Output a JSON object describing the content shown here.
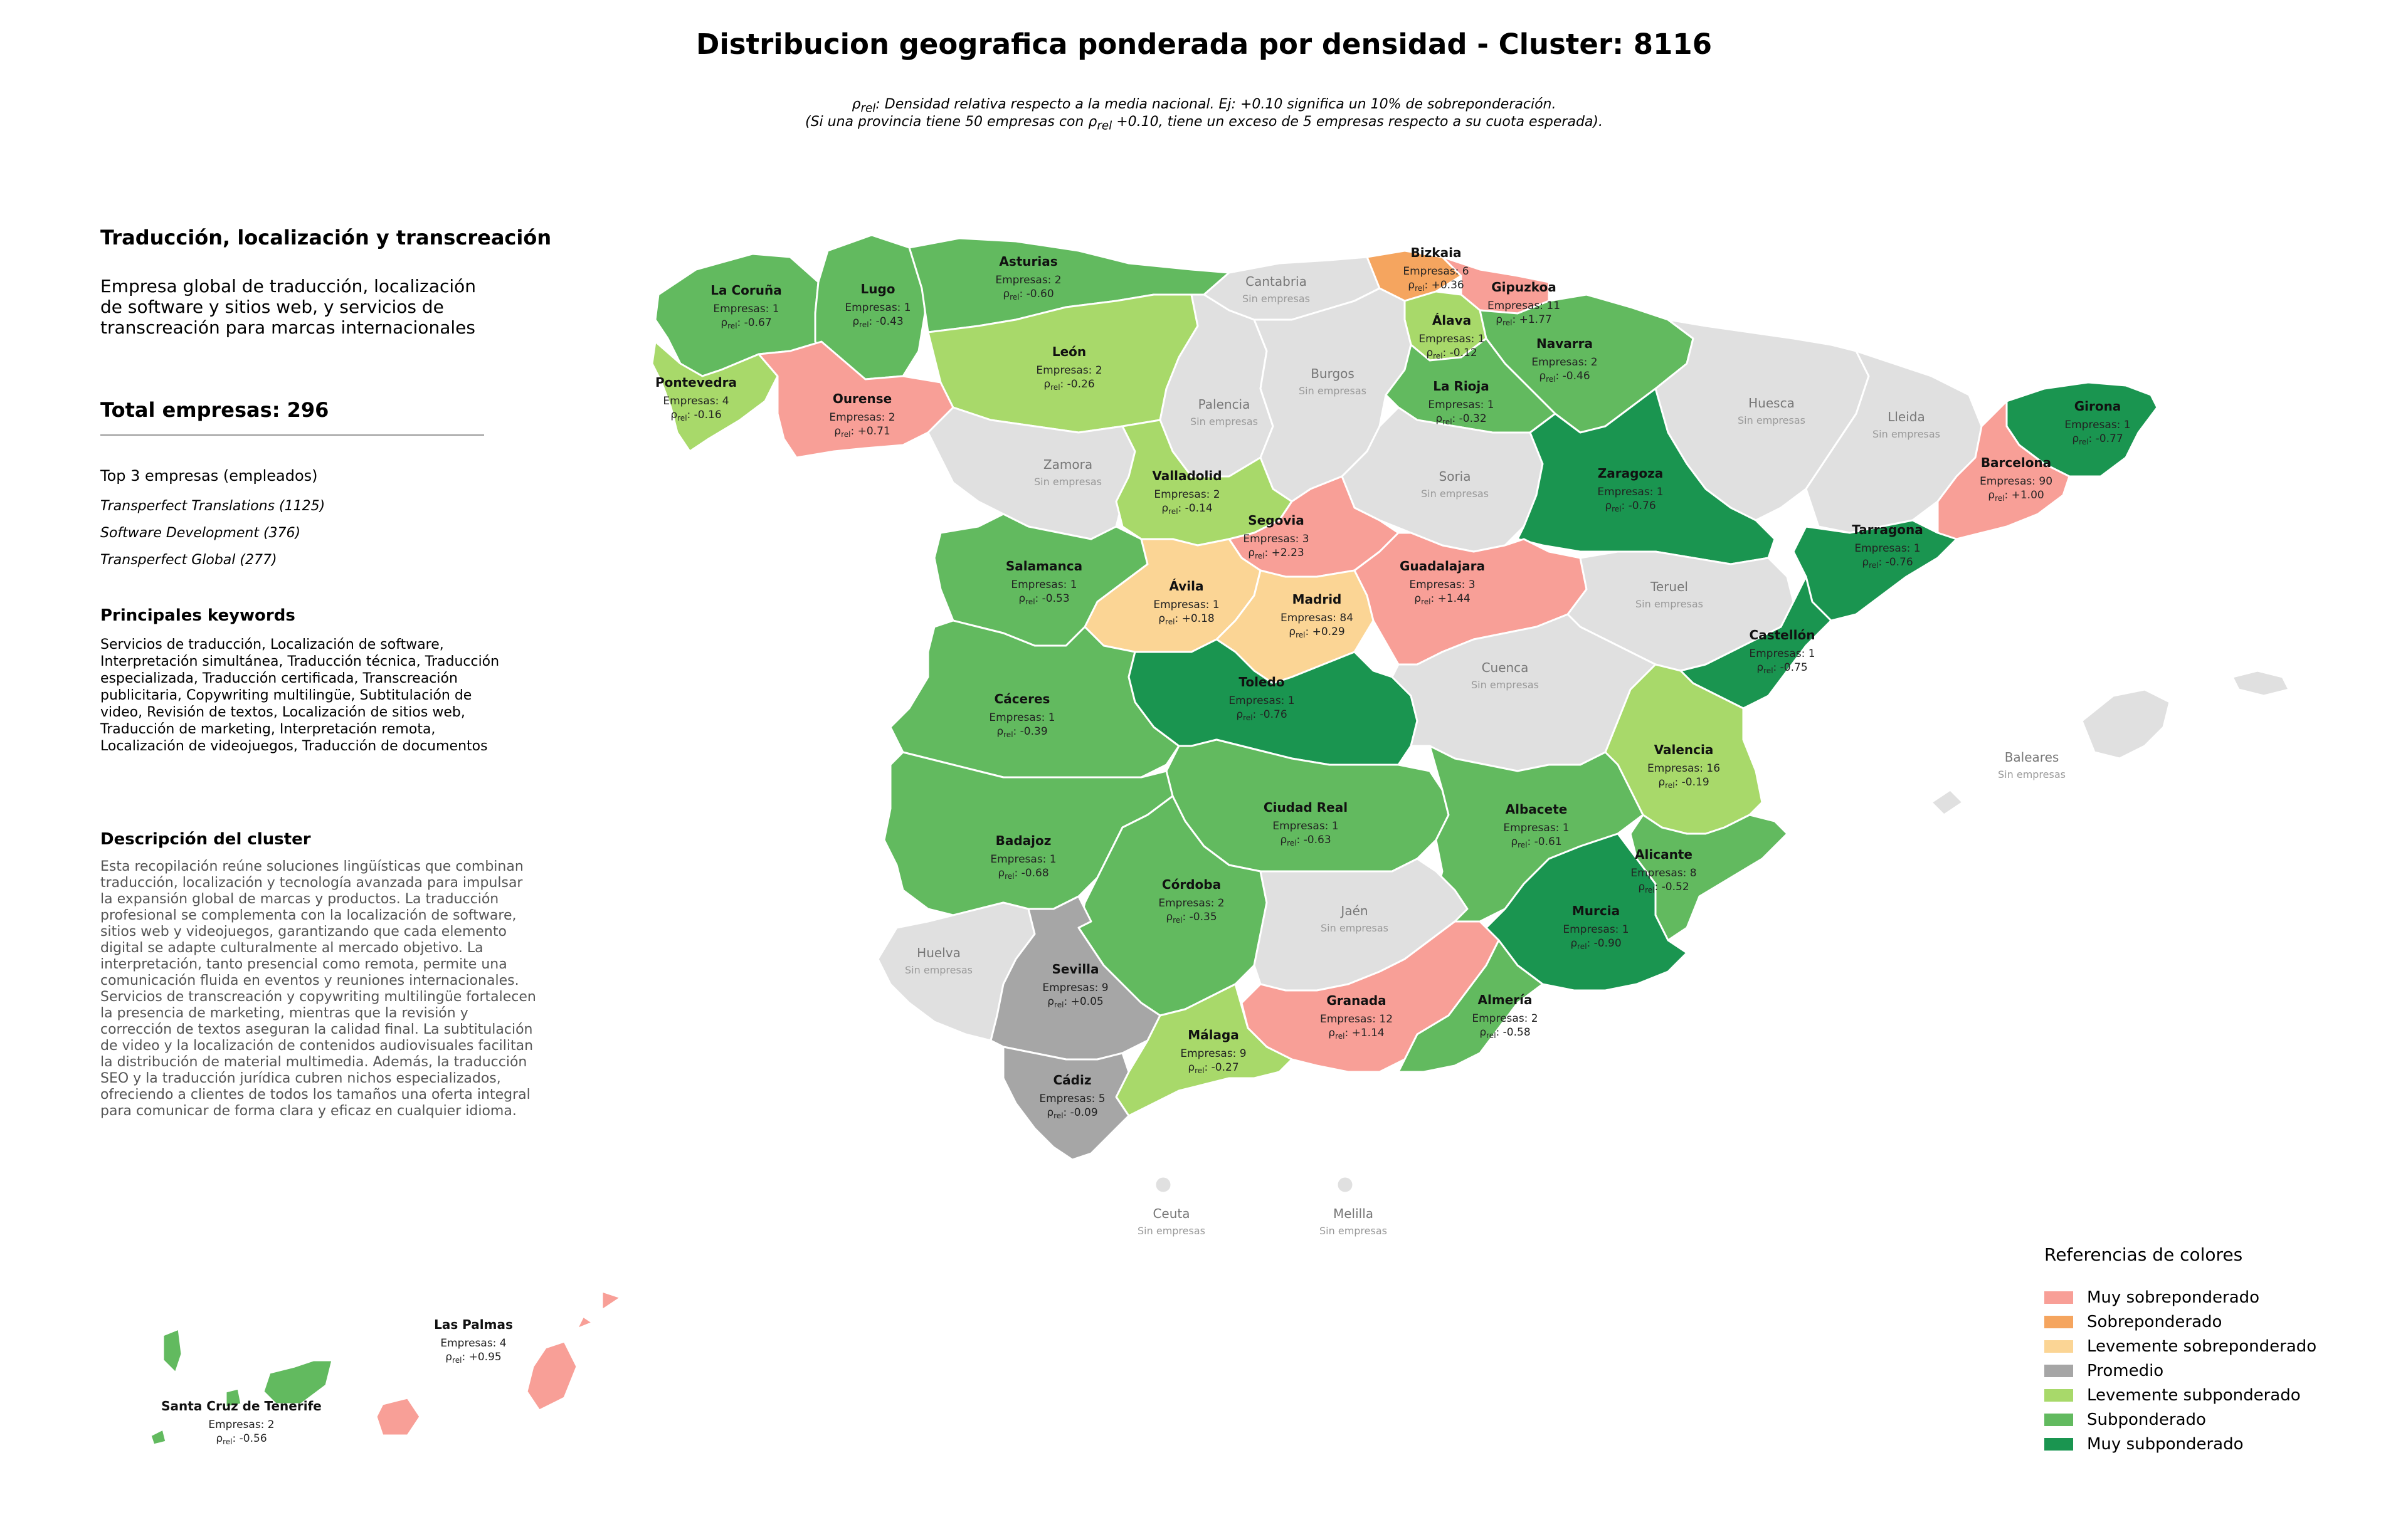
{
  "header": {
    "title": "Distribucion geografica ponderada por densidad - Cluster: 8116",
    "note_line1_prefix": "ρ",
    "note_line1_sub": "rel",
    "note_line1_rest": ": Densidad relativa respecto a la media nacional. Ej: +0.10 significa un 10% de sobreponderación.",
    "note_line2_before": "(Si una provincia tiene 50 empresas con ρ",
    "note_line2_sub": "rel",
    "note_line2_after": " +0.10, tiene un exceso de 5 empresas respecto a su cuota esperada)."
  },
  "sidebar": {
    "heading": "Traducción, localización y transcreación",
    "description": "Empresa global de traducción, localización de software y sitios web, y servicios de transcreación para marcas internacionales",
    "total_label": "Total empresas: 296",
    "top_heading": "Top 3 empresas (empleados)",
    "top_companies": [
      "Transperfect Translations (1125)",
      "Software Development (376)",
      "Transperfect Global (277)"
    ],
    "keywords_heading": "Principales keywords",
    "keywords": "Servicios de traducción, Localización de software, Interpretación simultánea, Traducción técnica, Traducción especializada, Traducción certificada, Transcreación publicitaria, Copywriting multilingüe, Subtitulación de video, Revisión de textos, Localización de sitios web, Traducción de marketing, Interpretación remota, Localización de videojuegos, Traducción de documentos",
    "cluster_heading": "Descripción del cluster",
    "cluster_text": "Esta recopilación reúne soluciones lingüísticas que combinan traducción, localización y tecnología avanzada para impulsar la expansión global de marcas y productos. La traducción profesional se complementa con la localización de software, sitios web y videojuegos, garantizando que cada elemento digital se adapte culturalmente al mercado objetivo. La interpretación, tanto presencial como remota, permite una comunicación fluida en eventos y reuniones internacionales. Servicios de transcreación y copywriting multilingüe fortalecen la presencia de marketing, mientras que la revisión y corrección de textos aseguran la calidad final. La subtitulación de video y la localización de contenidos audiovisuales facilitan la distribución de material multimedia. Además, la traducción SEO y la traducción jurídica cubren nichos especializados, ofreciendo a clientes de todos los tamaños una oferta integral para comunicar de forma clara y eficaz en cualquier idioma."
  },
  "colors": {
    "muy_sobre": "#f89f97",
    "sobre": "#f5a55f",
    "lev_sobre": "#fbd595",
    "promedio": "#a6a6a6",
    "lev_sub": "#a8d96a",
    "sub": "#62ba5f",
    "muy_sub": "#1a9550",
    "sin": "#e0e0e0"
  },
  "map_labels": {
    "empresas_prefix": "Empresas: ",
    "rho": "ρ",
    "rho_sub": "rel",
    "sin_empresas": "Sin empresas"
  },
  "provinces": [
    {
      "name": "La Coruña",
      "n": "1",
      "rho": "-0.67",
      "cat": "sub"
    },
    {
      "name": "Lugo",
      "n": "1",
      "rho": "-0.43",
      "cat": "sub"
    },
    {
      "name": "Asturias",
      "n": "2",
      "rho": "-0.60",
      "cat": "sub"
    },
    {
      "name": "Cantabria",
      "n": null,
      "rho": null,
      "cat": "sin"
    },
    {
      "name": "Bizkaia",
      "n": "6",
      "rho": "+0.36",
      "cat": "sobre"
    },
    {
      "name": "Gipuzkoa",
      "n": "11",
      "rho": "+1.77",
      "cat": "muy_sobre"
    },
    {
      "name": "Álava",
      "n": "1",
      "rho": "-0.12",
      "cat": "lev_sub"
    },
    {
      "name": "Navarra",
      "n": "2",
      "rho": "-0.46",
      "cat": "sub"
    },
    {
      "name": "Pontevedra",
      "n": "4",
      "rho": "-0.16",
      "cat": "lev_sub"
    },
    {
      "name": "Ourense",
      "n": "2",
      "rho": "+0.71",
      "cat": "muy_sobre"
    },
    {
      "name": "León",
      "n": "2",
      "rho": "-0.26",
      "cat": "lev_sub"
    },
    {
      "name": "Palencia",
      "n": null,
      "rho": null,
      "cat": "sin"
    },
    {
      "name": "Burgos",
      "n": null,
      "rho": null,
      "cat": "sin"
    },
    {
      "name": "La Rioja",
      "n": "1",
      "rho": "-0.32",
      "cat": "sub"
    },
    {
      "name": "Huesca",
      "n": null,
      "rho": null,
      "cat": "sin"
    },
    {
      "name": "Lleida",
      "n": null,
      "rho": null,
      "cat": "sin"
    },
    {
      "name": "Girona",
      "n": "1",
      "rho": "-0.77",
      "cat": "muy_sub"
    },
    {
      "name": "Zamora",
      "n": null,
      "rho": null,
      "cat": "sin"
    },
    {
      "name": "Valladolid",
      "n": "2",
      "rho": "-0.14",
      "cat": "lev_sub"
    },
    {
      "name": "Soria",
      "n": null,
      "rho": null,
      "cat": "sin"
    },
    {
      "name": "Zaragoza",
      "n": "1",
      "rho": "-0.76",
      "cat": "muy_sub"
    },
    {
      "name": "Barcelona",
      "n": "90",
      "rho": "+1.00",
      "cat": "muy_sobre"
    },
    {
      "name": "Tarragona",
      "n": "1",
      "rho": "-0.76",
      "cat": "muy_sub"
    },
    {
      "name": "Segovia",
      "n": "3",
      "rho": "+2.23",
      "cat": "muy_sobre"
    },
    {
      "name": "Salamanca",
      "n": "1",
      "rho": "-0.53",
      "cat": "sub"
    },
    {
      "name": "Ávila",
      "n": "1",
      "rho": "+0.18",
      "cat": "lev_sobre"
    },
    {
      "name": "Madrid",
      "n": "84",
      "rho": "+0.29",
      "cat": "lev_sobre"
    },
    {
      "name": "Guadalajara",
      "n": "3",
      "rho": "+1.44",
      "cat": "muy_sobre"
    },
    {
      "name": "Teruel",
      "n": null,
      "rho": null,
      "cat": "sin"
    },
    {
      "name": "Castellón",
      "n": "1",
      "rho": "-0.75",
      "cat": "muy_sub"
    },
    {
      "name": "Cáceres",
      "n": "1",
      "rho": "-0.39",
      "cat": "sub"
    },
    {
      "name": "Toledo",
      "n": "1",
      "rho": "-0.76",
      "cat": "muy_sub"
    },
    {
      "name": "Cuenca",
      "n": null,
      "rho": null,
      "cat": "sin"
    },
    {
      "name": "Valencia",
      "n": "16",
      "rho": "-0.19",
      "cat": "lev_sub"
    },
    {
      "name": "Baleares",
      "n": null,
      "rho": null,
      "cat": "sin"
    },
    {
      "name": "Ciudad Real",
      "n": "1",
      "rho": "-0.63",
      "cat": "sub"
    },
    {
      "name": "Albacete",
      "n": "1",
      "rho": "-0.61",
      "cat": "sub"
    },
    {
      "name": "Alicante",
      "n": "8",
      "rho": "-0.52",
      "cat": "sub"
    },
    {
      "name": "Badajoz",
      "n": "1",
      "rho": "-0.68",
      "cat": "sub"
    },
    {
      "name": "Córdoba",
      "n": "2",
      "rho": "-0.35",
      "cat": "sub"
    },
    {
      "name": "Jaén",
      "n": null,
      "rho": null,
      "cat": "sin"
    },
    {
      "name": "Murcia",
      "n": "1",
      "rho": "-0.90",
      "cat": "muy_sub"
    },
    {
      "name": "Huelva",
      "n": null,
      "rho": null,
      "cat": "sin"
    },
    {
      "name": "Sevilla",
      "n": "9",
      "rho": "+0.05",
      "cat": "promedio"
    },
    {
      "name": "Granada",
      "n": "12",
      "rho": "+1.14",
      "cat": "muy_sobre"
    },
    {
      "name": "Almería",
      "n": "2",
      "rho": "-0.58",
      "cat": "sub"
    },
    {
      "name": "Málaga",
      "n": "9",
      "rho": "-0.27",
      "cat": "lev_sub"
    },
    {
      "name": "Cádiz",
      "n": "5",
      "rho": "-0.09",
      "cat": "promedio"
    },
    {
      "name": "Ceuta",
      "n": null,
      "rho": null,
      "cat": "sin"
    },
    {
      "name": "Melilla",
      "n": null,
      "rho": null,
      "cat": "sin"
    },
    {
      "name": "Las Palmas",
      "n": "4",
      "rho": "+0.95",
      "cat": "muy_sobre"
    },
    {
      "name": "Santa Cruz de Tenerife",
      "n": "2",
      "rho": "-0.56",
      "cat": "sub"
    }
  ],
  "legend": {
    "title": "Referencias de colores",
    "items": [
      {
        "label": "Muy sobreponderado",
        "cat": "muy_sobre"
      },
      {
        "label": "Sobreponderado",
        "cat": "sobre"
      },
      {
        "label": "Levemente sobreponderado",
        "cat": "lev_sobre"
      },
      {
        "label": "Promedio",
        "cat": "promedio"
      },
      {
        "label": "Levemente subponderado",
        "cat": "lev_sub"
      },
      {
        "label": "Subponderado",
        "cat": "sub"
      },
      {
        "label": "Muy subponderado",
        "cat": "muy_sub"
      }
    ]
  }
}
